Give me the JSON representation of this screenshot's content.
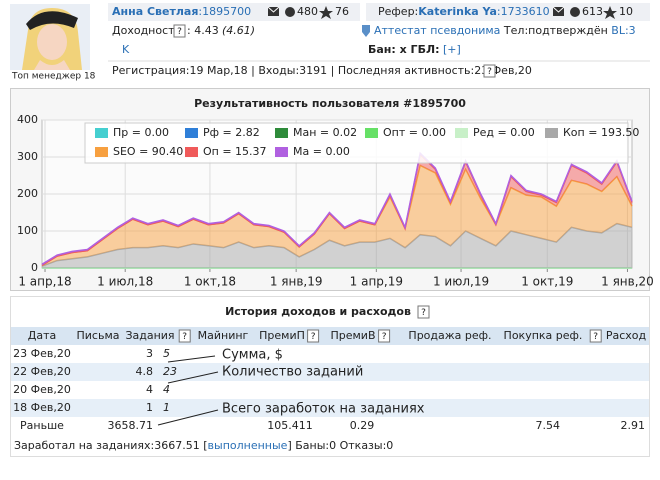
{
  "header": {
    "avatar_caption": "Топ менеджер 18",
    "name": "Анна Светлая",
    "id": ":1895700",
    "mail_count": "480",
    "stars": "76",
    "referrer_label": "Рефер:",
    "referrer_name": "Katerinka Ya",
    "referrer_id": ":1733610",
    "referrer_mail": "613",
    "referrer_stars": "10",
    "yield_label": "Доходность",
    "yield_help": "?",
    "yield_value": ": 4.43",
    "yield_alt": "(4.61)",
    "attestat": "Аттестат псевдонима",
    "tel": "Тел:подтверждён",
    "bl": "BL:3",
    "k": "K",
    "ban": "Бан: x ГБЛ:",
    "gbl": "[+]",
    "registration": "Регистрация:19 Мар,18 | Входы:3191 | Последняя активность:23 Фев,20",
    "registration_help": "?"
  },
  "chart_data": {
    "type": "area",
    "stacked": true,
    "title": "Результативность пользователя #1895700",
    "ylim": [
      0,
      400
    ],
    "yticks": [
      0,
      100,
      200,
      300,
      400
    ],
    "xlim": [
      0,
      39
    ],
    "xticks": [
      {
        "value": 0.2,
        "label": "1 апр,18"
      },
      {
        "value": 5.5,
        "label": "1 июл,18"
      },
      {
        "value": 11.1,
        "label": "1 окт,18"
      },
      {
        "value": 16.8,
        "label": "1 янв,19"
      },
      {
        "value": 22.1,
        "label": "1 апр,19"
      },
      {
        "value": 27.7,
        "label": "1 июл,19"
      },
      {
        "value": 33.4,
        "label": "1 окт,19"
      },
      {
        "value": 38.7,
        "label": "1 янв,20"
      }
    ],
    "grid": true,
    "legend": "top",
    "series": [
      {
        "name": "Пр = 0.00",
        "color": "#45cfd0",
        "values": [
          0,
          0,
          0,
          0,
          0,
          0,
          0,
          0,
          0,
          0,
          0,
          0,
          0,
          0,
          0,
          0,
          0,
          0,
          0,
          0,
          0,
          0,
          0,
          0,
          0,
          0,
          0,
          0,
          0,
          0,
          0,
          0,
          0,
          0,
          0,
          0,
          0,
          0,
          0,
          0
        ]
      },
      {
        "name": "Рф = 2.82",
        "color": "#2f7fd8",
        "values": [
          0,
          0,
          0,
          0,
          0,
          0,
          0,
          0,
          0,
          0,
          0,
          0,
          0,
          0,
          0,
          0,
          0,
          0,
          0,
          0,
          0,
          0,
          0,
          0,
          0,
          0,
          0,
          0,
          0,
          0,
          0,
          0,
          0,
          0,
          0,
          0,
          0,
          0,
          0,
          0
        ]
      },
      {
        "name": "Ман = 0.02",
        "color": "#2e8b3a",
        "values": [
          0,
          0,
          0,
          0,
          0,
          0,
          0,
          0,
          0,
          0,
          0,
          0,
          0,
          0,
          0,
          0,
          0,
          0,
          0,
          0,
          0,
          0,
          0,
          0,
          0,
          0,
          0,
          0,
          0,
          0,
          0,
          0,
          0,
          0,
          0,
          0,
          0,
          0,
          0,
          0
        ]
      },
      {
        "name": "Опт = 0.00",
        "color": "#66e066",
        "values": [
          0,
          0,
          0,
          0,
          0,
          0,
          0,
          0,
          0,
          0,
          0,
          0,
          0,
          0,
          0,
          0,
          0,
          0,
          0,
          0,
          0,
          0,
          0,
          0,
          0,
          0,
          0,
          0,
          0,
          0,
          0,
          0,
          0,
          0,
          0,
          0,
          0,
          0,
          0,
          0
        ]
      },
      {
        "name": "Ред = 0.00",
        "color": "#c8f0c8",
        "values": [
          0,
          0,
          0,
          0,
          0,
          0,
          0,
          0,
          0,
          0,
          0,
          0,
          0,
          0,
          0,
          0,
          0,
          0,
          0,
          0,
          0,
          0,
          0,
          0,
          0,
          0,
          0,
          0,
          0,
          0,
          0,
          0,
          0,
          0,
          0,
          0,
          0,
          0,
          0,
          0
        ]
      },
      {
        "name": "Коп = 193.50",
        "color": "#a8a8a8",
        "values": [
          5,
          20,
          25,
          30,
          40,
          50,
          55,
          55,
          60,
          55,
          65,
          60,
          55,
          70,
          55,
          60,
          55,
          30,
          50,
          75,
          60,
          70,
          70,
          80,
          55,
          90,
          85,
          60,
          100,
          80,
          60,
          100,
          90,
          80,
          70,
          110,
          100,
          95,
          120,
          110
        ]
      },
      {
        "name": "SEO = 90.40",
        "color": "#f7a040",
        "values": [
          2,
          12,
          17,
          17,
          37,
          57,
          77,
          62,
          67,
          57,
          67,
          57,
          67,
          77,
          62,
          52,
          42,
          27,
          42,
          72,
          47,
          57,
          47,
          112,
          52,
          187,
          172,
          112,
          167,
          107,
          57,
          117,
          107,
          112,
          97,
          127,
          127,
          112,
          127,
          57
        ]
      },
      {
        "name": "Оп = 15.37",
        "color": "#f05a5a",
        "values": [
          0,
          0,
          0,
          0,
          0,
          0,
          0,
          0,
          0,
          0,
          0,
          0,
          0,
          0,
          0,
          0,
          0,
          0,
          0,
          0,
          0,
          0,
          0,
          5,
          0,
          30,
          10,
          5,
          20,
          10,
          0,
          30,
          10,
          5,
          10,
          40,
          30,
          20,
          40,
          10
        ]
      },
      {
        "name": "Ма = 0.00",
        "color": "#b060e0",
        "values": [
          3,
          3,
          3,
          3,
          3,
          3,
          3,
          3,
          3,
          3,
          3,
          3,
          3,
          3,
          3,
          3,
          3,
          3,
          3,
          3,
          3,
          3,
          3,
          3,
          3,
          3,
          3,
          3,
          3,
          3,
          3,
          3,
          3,
          3,
          3,
          3,
          3,
          3,
          3,
          3
        ]
      }
    ]
  },
  "table": {
    "title": "История доходов и расходов",
    "title_help": "?",
    "headers": [
      {
        "label": "Дата"
      },
      {
        "label": "Письма"
      },
      {
        "label": "Задания",
        "help": "?"
      },
      {
        "label": "Майнинг"
      },
      {
        "label": "ПремиП",
        "help": "?"
      },
      {
        "label": "ПремиВ",
        "help": "?"
      },
      {
        "label": "Продажа реф."
      },
      {
        "label": "Покупка реф.",
        "help": "?"
      },
      {
        "label": "Расход"
      }
    ],
    "rows": [
      [
        "23 Фев,20",
        null,
        "3",
        "5",
        null,
        null,
        null,
        null,
        null,
        null
      ],
      [
        "22 Фев,20",
        null,
        "4.8",
        "23",
        null,
        null,
        null,
        null,
        null,
        null
      ],
      [
        "20 Фев,20",
        null,
        "4",
        "4",
        null,
        null,
        null,
        null,
        null,
        null
      ],
      [
        "18 Фев,20",
        null,
        "1",
        "1",
        null,
        null,
        null,
        null,
        null,
        null
      ],
      [
        "Раньше",
        null,
        "3658.71",
        null,
        null,
        "105.411",
        "0.29",
        null,
        "7.54",
        "2.91"
      ]
    ],
    "annotations": [
      "Сумма, $",
      "Количество заданий",
      "Всего заработок на заданиях"
    ]
  },
  "footer": {
    "earned": "Заработал на заданиях:3667.51 [",
    "link": "выполненные",
    "rest": "] Баны:0 Отказы:0"
  }
}
